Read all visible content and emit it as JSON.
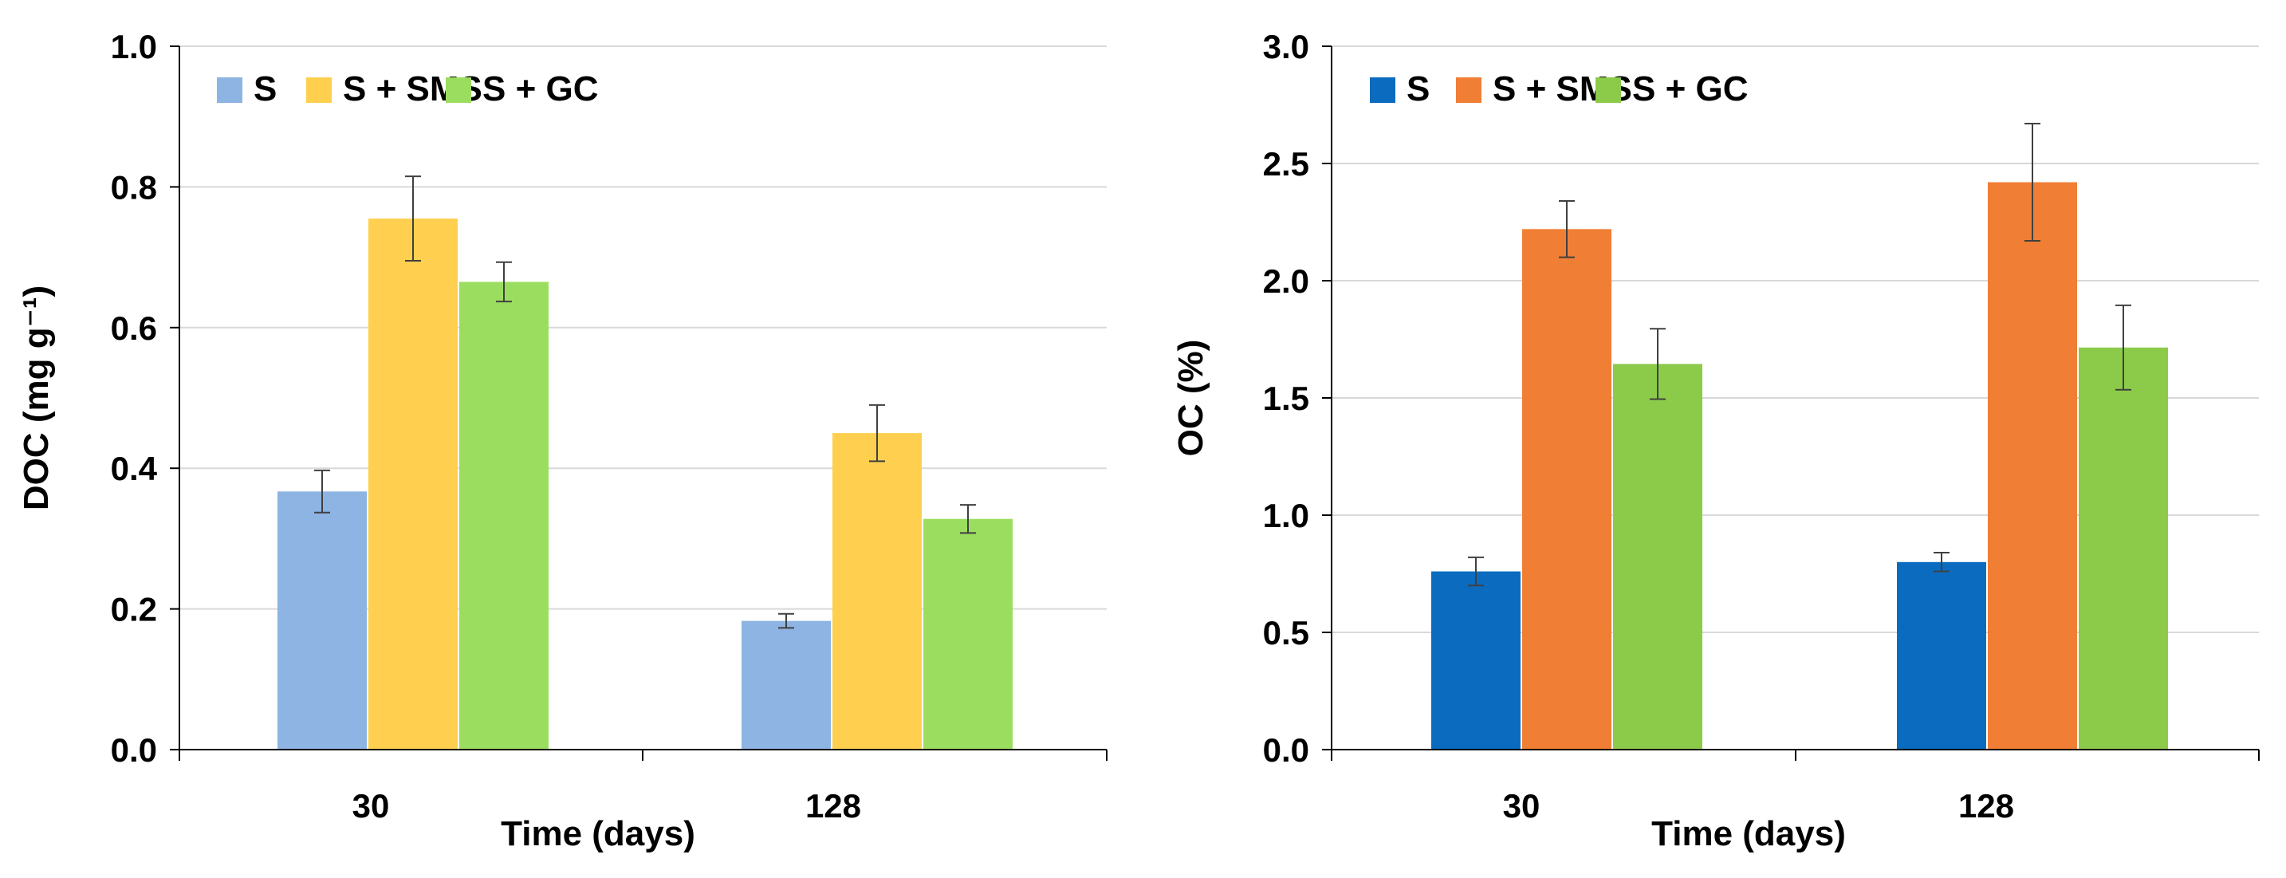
{
  "chart_data": [
    {
      "type": "bar",
      "categories": [
        "30",
        "128"
      ],
      "series": [
        {
          "name": "S",
          "values": [
            0.367,
            0.183
          ],
          "errors": [
            0.03,
            0.01
          ],
          "color": "#8DB4E2"
        },
        {
          "name": "S + SMS",
          "values": [
            0.755,
            0.45
          ],
          "errors": [
            0.06,
            0.04
          ],
          "color": "#FFD04F"
        },
        {
          "name": "S + GC",
          "values": [
            0.665,
            0.328
          ],
          "errors": [
            0.028,
            0.02
          ],
          "color": "#9BDE5F"
        }
      ],
      "xlabel": "Time (days)",
      "ylabel": "DOC (mg g⁻¹)",
      "ylim": [
        0,
        1.0
      ],
      "yticks": [
        "0.0",
        "0.2",
        "0.4",
        "0.6",
        "0.8",
        "1.0"
      ],
      "legend": "top-left",
      "grid": true
    },
    {
      "type": "bar",
      "categories": [
        "30",
        "128"
      ],
      "series": [
        {
          "name": "S",
          "values": [
            0.76,
            0.8
          ],
          "errors": [
            0.06,
            0.04
          ],
          "color": "#0A6BBF"
        },
        {
          "name": "S + SMS",
          "values": [
            2.22,
            2.42
          ],
          "errors": [
            0.12,
            0.25
          ],
          "color": "#F07E34"
        },
        {
          "name": "S + GC",
          "values": [
            1.645,
            1.715
          ],
          "errors": [
            0.15,
            0.18
          ],
          "color": "#8CCB4A"
        }
      ],
      "xlabel": "Time (days)",
      "ylabel": "OC (%)",
      "ylim": [
        0,
        3.0
      ],
      "yticks": [
        "0.0",
        "0.5",
        "1.0",
        "1.5",
        "2.0",
        "2.5",
        "3.0"
      ],
      "legend": "top-left",
      "grid": true
    }
  ]
}
